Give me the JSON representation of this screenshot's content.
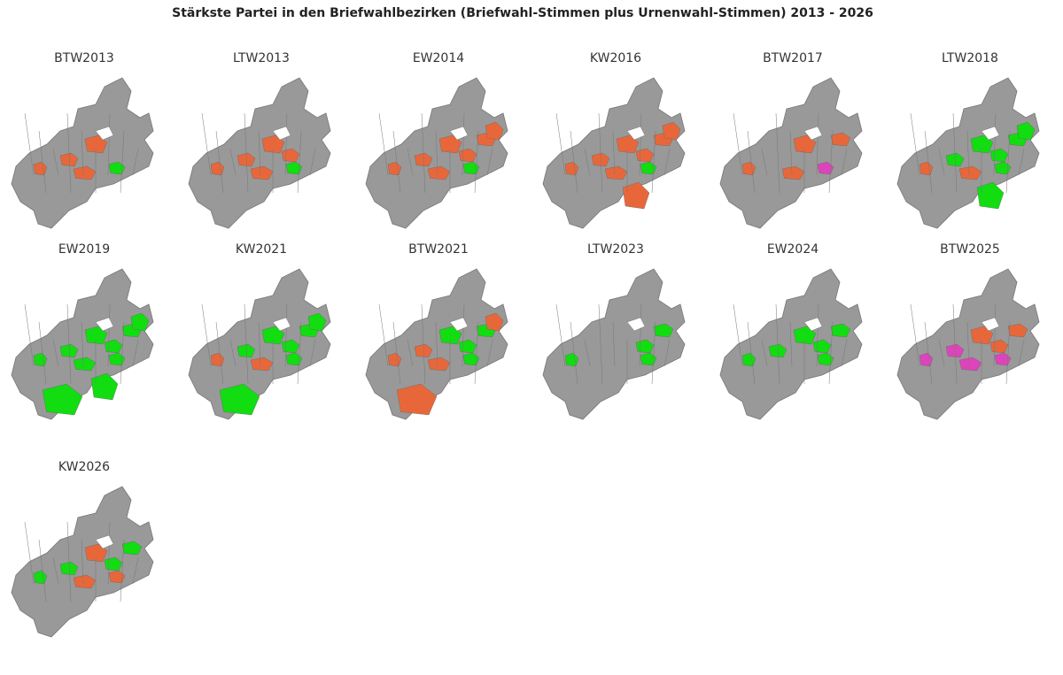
{
  "title": "Stärkste Partei in den Briefwahlbezirken (Briefwahl-Stimmen plus Urnenwahl-Stimmen) 2013 - 2026",
  "panels": [
    {
      "title": "BTW2013"
    },
    {
      "title": "LTW2013"
    },
    {
      "title": "EW2014"
    },
    {
      "title": "KW2016"
    },
    {
      "title": "BTW2017"
    },
    {
      "title": "LTW2018"
    },
    {
      "title": "EW2019"
    },
    {
      "title": "KW2021"
    },
    {
      "title": "BTW2021"
    },
    {
      "title": "LTW2023"
    },
    {
      "title": "EW2024"
    },
    {
      "title": "BTW2025"
    },
    {
      "title": "KW2026"
    }
  ]
}
